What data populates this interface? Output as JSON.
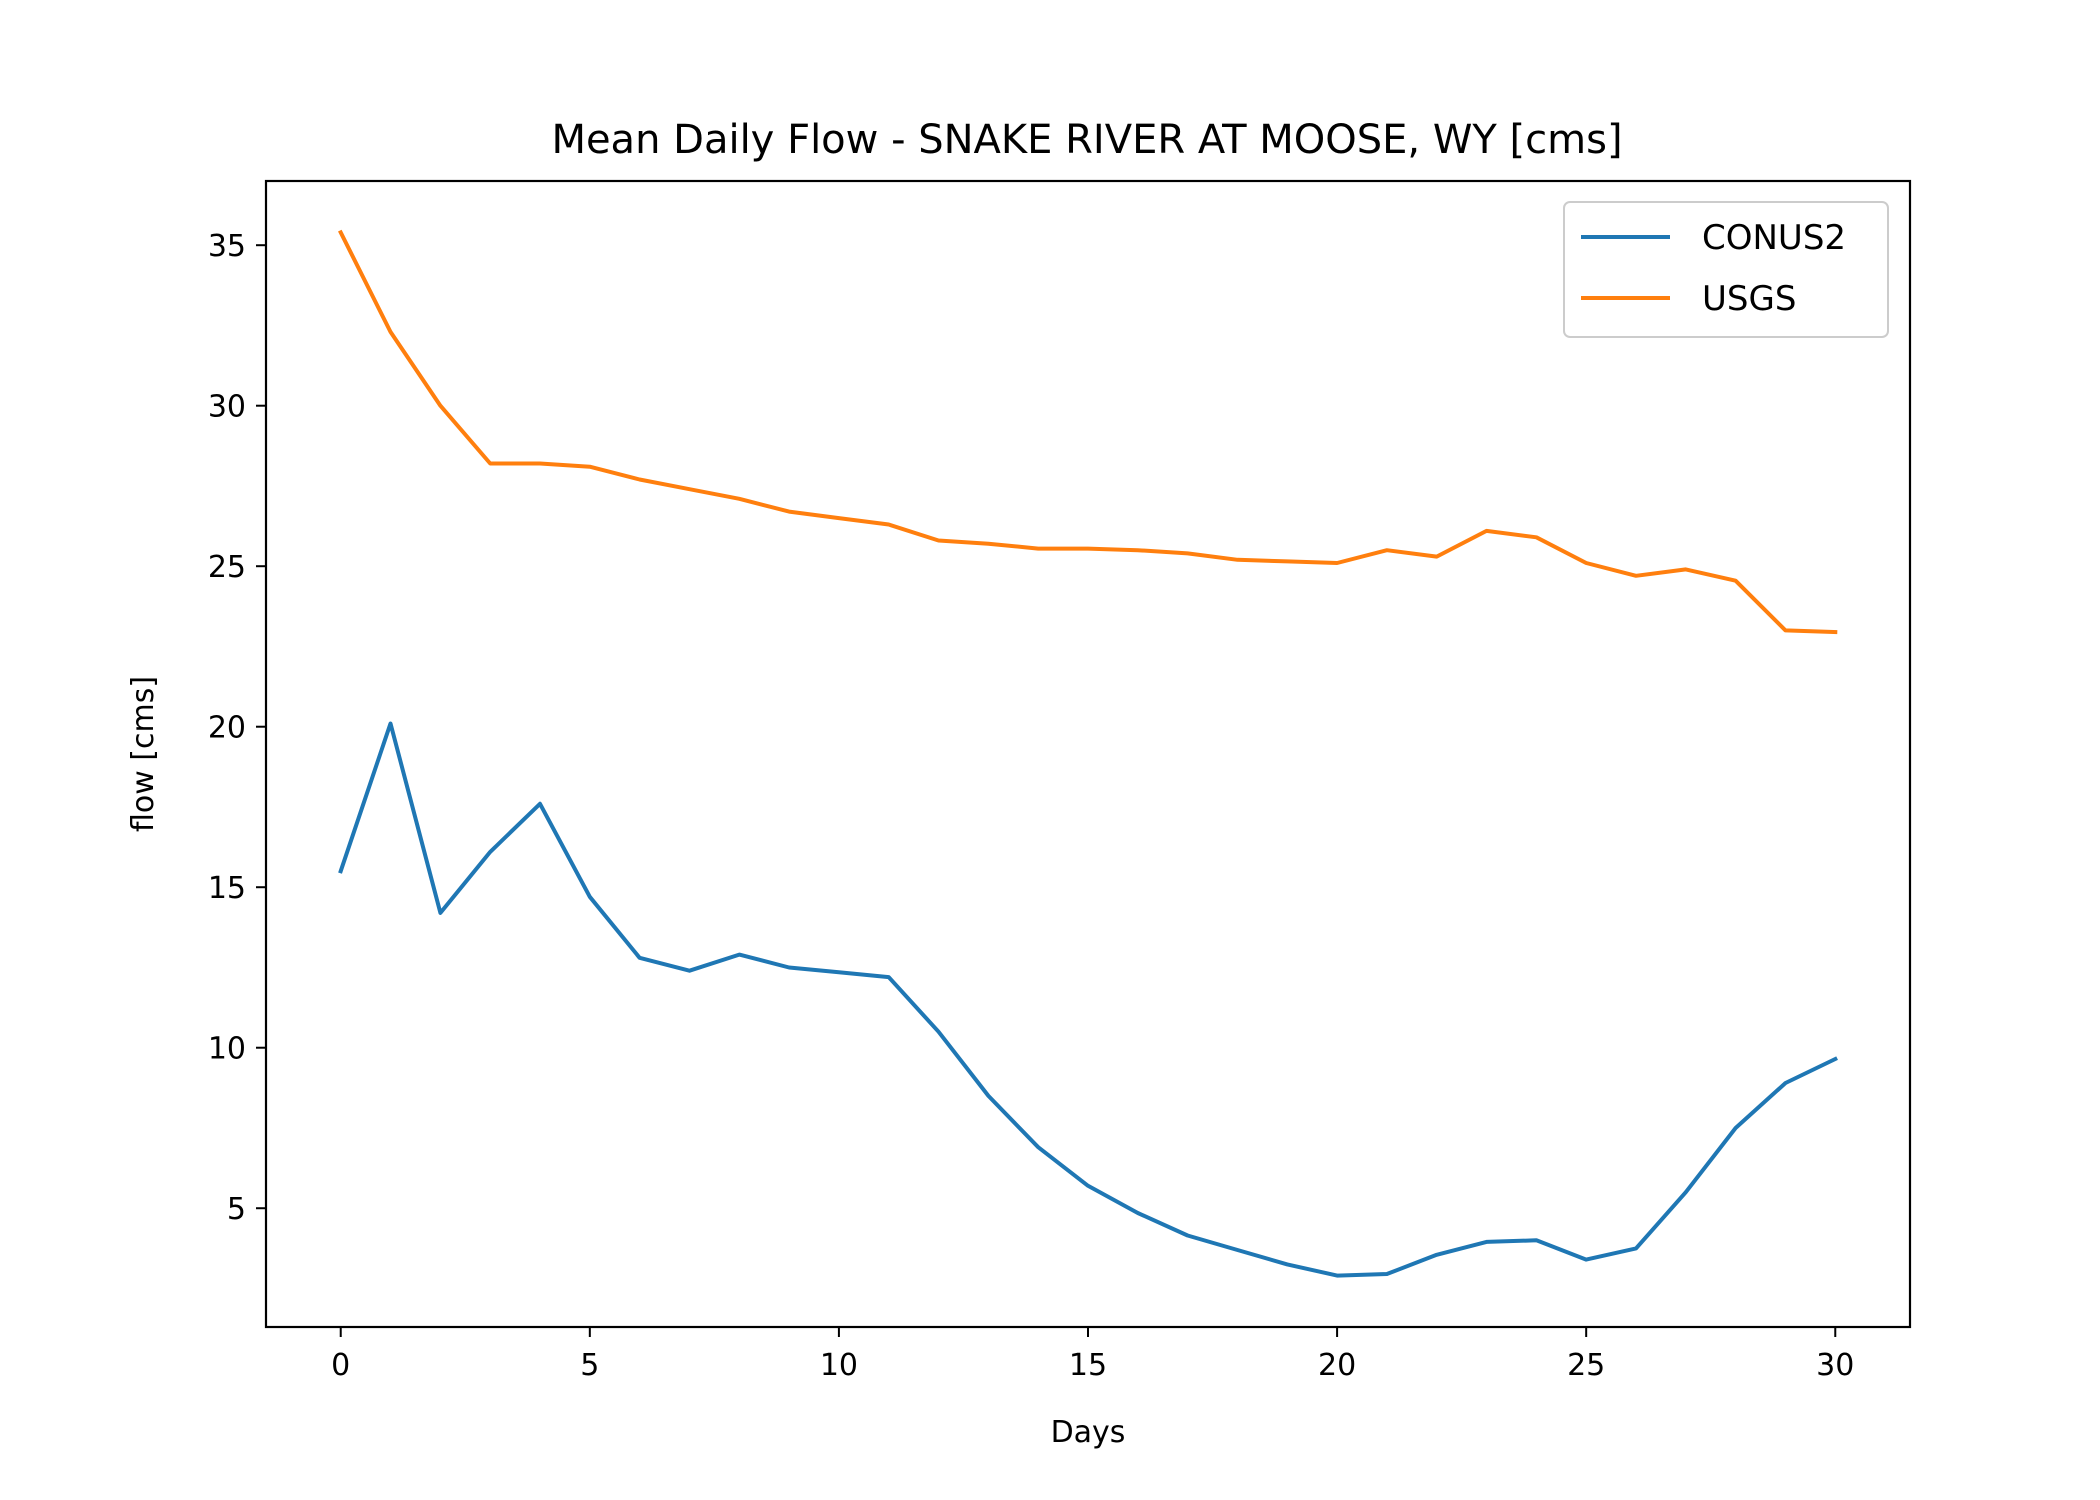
{
  "chart_data": {
    "type": "line",
    "title": "Mean Daily Flow - SNAKE RIVER AT MOOSE, WY [cms]",
    "xlabel": "Days",
    "ylabel": "flow [cms]",
    "xlim": [
      -1.5,
      31.5
    ],
    "ylim": [
      1.3,
      37.0
    ],
    "xticks": [
      0,
      5,
      10,
      15,
      20,
      25,
      30
    ],
    "yticks": [
      5,
      10,
      15,
      20,
      25,
      30,
      35
    ],
    "grid": false,
    "legend_position": "top-right",
    "x": [
      0,
      1,
      2,
      3,
      4,
      5,
      6,
      7,
      8,
      9,
      10,
      11,
      12,
      13,
      14,
      15,
      16,
      17,
      18,
      19,
      20,
      21,
      22,
      23,
      24,
      25,
      26,
      27,
      28,
      29,
      30
    ],
    "series": [
      {
        "name": "CONUS2",
        "color": "#1f77b4",
        "values": [
          15.5,
          20.1,
          14.2,
          16.1,
          17.6,
          14.7,
          12.8,
          12.4,
          12.9,
          12.5,
          12.35,
          12.2,
          10.5,
          8.5,
          6.9,
          5.7,
          4.85,
          4.15,
          3.7,
          3.25,
          2.9,
          2.95,
          3.55,
          3.95,
          4.0,
          3.4,
          3.75,
          5.5,
          7.5,
          8.9,
          9.65
        ]
      },
      {
        "name": "USGS",
        "color": "#ff7f0e",
        "values": [
          35.4,
          32.3,
          30.0,
          28.2,
          28.2,
          28.1,
          27.7,
          27.4,
          27.1,
          26.7,
          26.5,
          26.3,
          25.8,
          25.7,
          25.55,
          25.55,
          25.5,
          25.4,
          25.2,
          25.15,
          25.1,
          25.5,
          25.3,
          26.1,
          25.9,
          25.1,
          24.7,
          24.9,
          24.55,
          23.0,
          22.95
        ]
      }
    ]
  }
}
